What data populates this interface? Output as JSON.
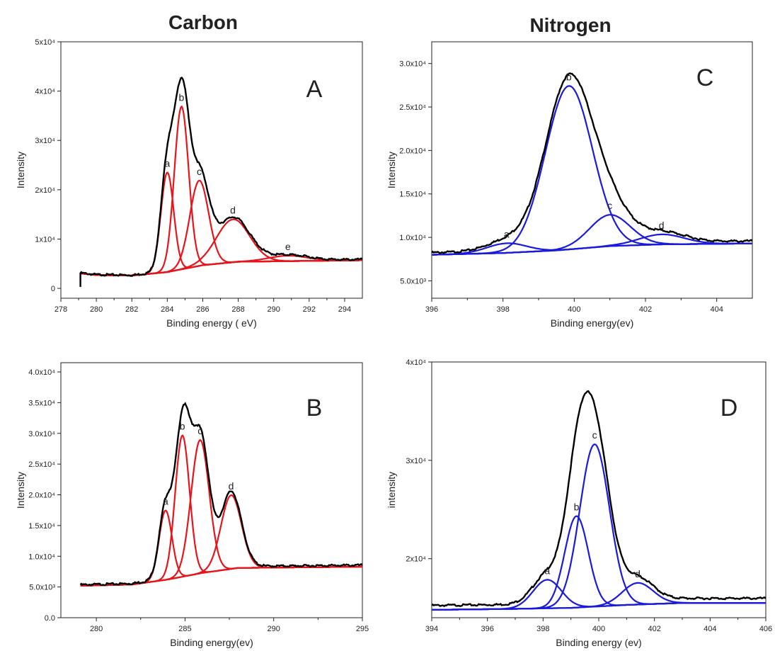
{
  "column_titles": {
    "carbon": "Carbon",
    "nitrogen": "Nitrogen"
  },
  "colors": {
    "envelope": "#000000",
    "carbon_fit": "#e8141b",
    "nitrogen_fit": "#1a1adc"
  },
  "chart_data": [
    {
      "id": "A",
      "type": "line",
      "panel_label": "A",
      "xlabel": "Binding energy ( eV)",
      "ylabel": "Intensity",
      "xlim": [
        278,
        295
      ],
      "ylim": [
        -2000,
        50000
      ],
      "xticks": [
        278,
        280,
        282,
        284,
        286,
        288,
        290,
        292,
        294
      ],
      "xtick_labels": [
        "278",
        "280",
        "282",
        "284",
        "286",
        "288",
        "290",
        "292",
        "294"
      ],
      "yticks": [
        0,
        10000,
        20000,
        30000,
        40000,
        50000
      ],
      "ytick_labels": [
        "0",
        "1x10⁴",
        "2x10⁴",
        "3x10⁴",
        "4x10⁴",
        "5x10⁴"
      ],
      "fit_color": "red",
      "x_start": 279.1,
      "x_end": 295,
      "envelope_start_value": 300,
      "baseline": [
        [
          279.2,
          3000
        ],
        [
          280,
          2700
        ],
        [
          282,
          2600
        ],
        [
          284,
          3300
        ],
        [
          286,
          4700
        ],
        [
          288,
          5400
        ],
        [
          295,
          5700
        ]
      ],
      "components": [
        {
          "label": "a",
          "center": 284.0,
          "height": 20200,
          "fwhm": 0.85
        },
        {
          "label": "b",
          "center": 284.8,
          "height": 33000,
          "fwhm": 0.95
        },
        {
          "label": "c",
          "center": 285.8,
          "height": 17300,
          "fwhm": 1.25
        },
        {
          "label": "d",
          "center": 287.7,
          "height": 8700,
          "fwhm": 2.2
        },
        {
          "label": "e",
          "center": 290.8,
          "height": 1100,
          "fwhm": 2.6
        }
      ]
    },
    {
      "id": "B",
      "type": "line",
      "panel_label": "B",
      "xlabel": "Binding energy(ev)",
      "ylabel": "Intensity",
      "xlim": [
        278,
        295
      ],
      "ylim": [
        0,
        41500
      ],
      "xticks": [
        280,
        285,
        290,
        295
      ],
      "xtick_labels": [
        "280",
        "285",
        "290",
        "295"
      ],
      "yticks": [
        0,
        5000,
        10000,
        15000,
        20000,
        25000,
        30000,
        35000,
        40000
      ],
      "ytick_labels": [
        "0.0",
        "5.0x10³",
        "1.0x10⁴",
        "1.5x10⁴",
        "2.0x10⁴",
        "2.5x10⁴",
        "3.0x10⁴",
        "3.5x10⁴",
        "4.0x10⁴"
      ],
      "fit_color": "red",
      "x_start": 279.1,
      "x_end": 295,
      "baseline": [
        [
          279.1,
          5200
        ],
        [
          282,
          5400
        ],
        [
          284,
          6200
        ],
        [
          286,
          7300
        ],
        [
          288,
          8100
        ],
        [
          295,
          8300
        ]
      ],
      "components": [
        {
          "label": "a",
          "center": 283.9,
          "height": 11300,
          "fwhm": 0.85
        },
        {
          "label": "b",
          "center": 284.85,
          "height": 23000,
          "fwhm": 0.95
        },
        {
          "label": "c",
          "center": 285.85,
          "height": 21700,
          "fwhm": 1.2
        },
        {
          "label": "d",
          "center": 287.6,
          "height": 12000,
          "fwhm": 1.35
        }
      ]
    },
    {
      "id": "C",
      "type": "line",
      "panel_label": "C",
      "xlabel": "Binding energy(ev)",
      "ylabel": "Intensity",
      "xlim": [
        396,
        405
      ],
      "ylim": [
        3000,
        32500
      ],
      "xticks": [
        396,
        398,
        400,
        402,
        404
      ],
      "xtick_labels": [
        "396",
        "398",
        "400",
        "402",
        "404"
      ],
      "yticks": [
        5000,
        10000,
        15000,
        20000,
        25000,
        30000
      ],
      "ytick_labels": [
        "5.0x10³",
        "1.0x10⁴",
        "1.5x10⁴",
        "2.0x10⁴",
        "2.5x10⁴",
        "3.0x10⁴"
      ],
      "fit_color": "blue",
      "x_start": 396,
      "x_end": 405,
      "baseline": [
        [
          396,
          8000
        ],
        [
          398,
          8200
        ],
        [
          399.5,
          8500
        ],
        [
          401,
          9000
        ],
        [
          402.5,
          9200
        ],
        [
          405,
          9300
        ]
      ],
      "components": [
        {
          "label": "a",
          "center": 398.1,
          "height": 1100,
          "fwhm": 1.3
        },
        {
          "label": "b",
          "center": 399.85,
          "height": 18800,
          "fwhm": 1.55
        },
        {
          "label": "c",
          "center": 401.0,
          "height": 3600,
          "fwhm": 1.35
        },
        {
          "label": "d",
          "center": 402.45,
          "height": 1150,
          "fwhm": 1.5
        }
      ]
    },
    {
      "id": "D",
      "type": "line",
      "panel_label": "D",
      "xlabel": "Binding energy (ev)",
      "ylabel": "intensity",
      "xlim": [
        394,
        406
      ],
      "ylim": [
        14000,
        40000
      ],
      "xticks": [
        394,
        396,
        398,
        400,
        402,
        404,
        406
      ],
      "xtick_labels": [
        "394",
        "396",
        "398",
        "400",
        "402",
        "404",
        "406"
      ],
      "yticks": [
        20000,
        30000,
        40000
      ],
      "ytick_labels": [
        "2x10⁴",
        "3x10⁴",
        "4x10⁴"
      ],
      "fit_color": "blue",
      "x_start": 394,
      "x_end": 406,
      "baseline": [
        [
          394,
          14800
        ],
        [
          397,
          14900
        ],
        [
          399,
          15000
        ],
        [
          401,
          15300
        ],
        [
          403,
          15500
        ],
        [
          406,
          15500
        ]
      ],
      "components": [
        {
          "label": "a",
          "center": 398.15,
          "height": 2900,
          "fwhm": 1.2
        },
        {
          "label": "b",
          "center": 399.2,
          "height": 9300,
          "fwhm": 1.0
        },
        {
          "label": "c",
          "center": 399.85,
          "height": 16500,
          "fwhm": 1.25
        },
        {
          "label": "d",
          "center": 401.4,
          "height": 2200,
          "fwhm": 1.3
        }
      ]
    }
  ]
}
